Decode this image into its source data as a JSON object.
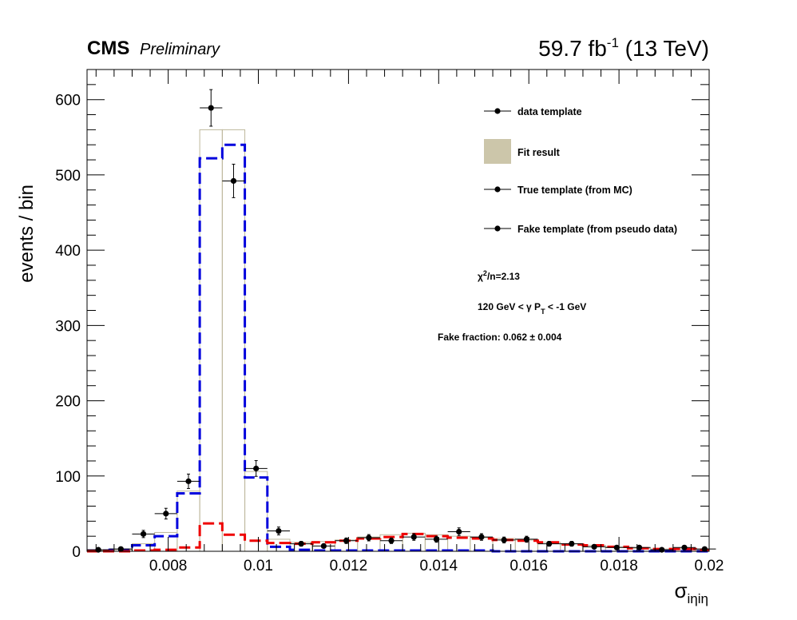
{
  "header": {
    "cms": "CMS",
    "preliminary": "Preliminary",
    "lumi_main": "59.7 fb",
    "lumi_sup": "-1",
    "lumi_energy": " (13 TeV)"
  },
  "chart_data": {
    "type": "histogram",
    "xlabel": "σ",
    "xlabel_sub": "iηiη",
    "ylabel": "events / bin",
    "xlim": [
      0.0062,
      0.02
    ],
    "ylim": [
      0,
      640
    ],
    "x_ticks": [
      0.008,
      0.01,
      0.012,
      0.014,
      0.016,
      0.018,
      0.02
    ],
    "x_tick_labels": [
      "0.008",
      "0.01",
      "0.012",
      "0.014",
      "0.016",
      "0.018",
      "0.02"
    ],
    "y_ticks": [
      0,
      100,
      200,
      300,
      400,
      500,
      600
    ],
    "y_tick_labels": [
      "0",
      "100",
      "200",
      "300",
      "400",
      "500",
      "600"
    ],
    "bin_edges": [
      0.0062,
      0.0067,
      0.0072,
      0.0077,
      0.0082,
      0.0087,
      0.0092,
      0.0097,
      0.0102,
      0.0107,
      0.0112,
      0.0117,
      0.0122,
      0.0127,
      0.0132,
      0.0137,
      0.0142,
      0.0147,
      0.0152,
      0.0157,
      0.0162,
      0.0167,
      0.0172,
      0.0177,
      0.0182,
      0.0187,
      0.0192,
      0.0197,
      0.02
    ],
    "series": [
      {
        "name": "data template",
        "kind": "points",
        "color": "#000000",
        "x": [
          0.00645,
          0.00695,
          0.00745,
          0.00795,
          0.00845,
          0.00895,
          0.00945,
          0.00995,
          0.01045,
          0.01095,
          0.01145,
          0.01195,
          0.01245,
          0.01295,
          0.01345,
          0.01395,
          0.01445,
          0.01495,
          0.01545,
          0.01595,
          0.01645,
          0.01695,
          0.01745,
          0.01795,
          0.01845,
          0.01895,
          0.01945,
          0.0199
        ],
        "y": [
          2,
          3,
          23,
          50,
          93,
          589,
          492,
          110,
          27,
          10,
          7,
          14,
          18,
          14,
          19,
          16,
          26,
          19,
          15,
          16,
          10,
          10,
          6,
          5,
          5,
          2,
          5,
          3
        ],
        "yerr": [
          1.4,
          1.7,
          4.8,
          7.1,
          9.6,
          24.3,
          22.2,
          10.5,
          5.2,
          3.2,
          2.6,
          3.7,
          4.2,
          3.7,
          4.4,
          4.0,
          5.1,
          4.4,
          3.9,
          4.0,
          3.2,
          3.2,
          2.4,
          2.2,
          2.2,
          1.4,
          2.2,
          1.7
        ]
      },
      {
        "name": "Fit result",
        "kind": "filled-step",
        "color": "#ccc6aa",
        "values": [
          1,
          2,
          10,
          25,
          80,
          560,
          560,
          106,
          16,
          12,
          13,
          15,
          19,
          22,
          24,
          22,
          20,
          18,
          17,
          15,
          12,
          10,
          8,
          6,
          4,
          3,
          3,
          2
        ]
      },
      {
        "name": "True template (from MC)",
        "kind": "dashed-step",
        "color": "#0000dd",
        "values": [
          1,
          2,
          8,
          20,
          77,
          522,
          540,
          98,
          6,
          2,
          1,
          1,
          1,
          1,
          1,
          1,
          1,
          1,
          0,
          0,
          0,
          0,
          0,
          0,
          0,
          0,
          0,
          0
        ]
      },
      {
        "name": "Fake template (from pseudo data)",
        "kind": "dashed-step",
        "color": "#ee0000",
        "values": [
          0,
          0,
          1,
          2,
          5,
          37,
          22,
          14,
          11,
          10,
          12,
          14,
          17,
          19,
          23,
          20,
          18,
          17,
          15,
          14,
          12,
          9,
          8,
          6,
          4,
          3,
          3,
          2
        ]
      }
    ],
    "legend_position": "top-right",
    "legend": [
      {
        "label": "data template",
        "style": "marker"
      },
      {
        "label": "Fit result",
        "style": "box"
      },
      {
        "label": "True template (from MC)",
        "style": "marker"
      },
      {
        "label": "Fake template (from pseudo data)",
        "style": "marker"
      }
    ],
    "annotations": {
      "chi2_pre": "χ",
      "chi2_sup": "2",
      "chi2_post": "/n=2.13",
      "pt_pre": "120 GeV < γ P",
      "pt_sub": "T",
      "pt_post": " < -1 GeV",
      "fake_fraction": "Fake fraction: 0.062 ± 0.004"
    }
  }
}
